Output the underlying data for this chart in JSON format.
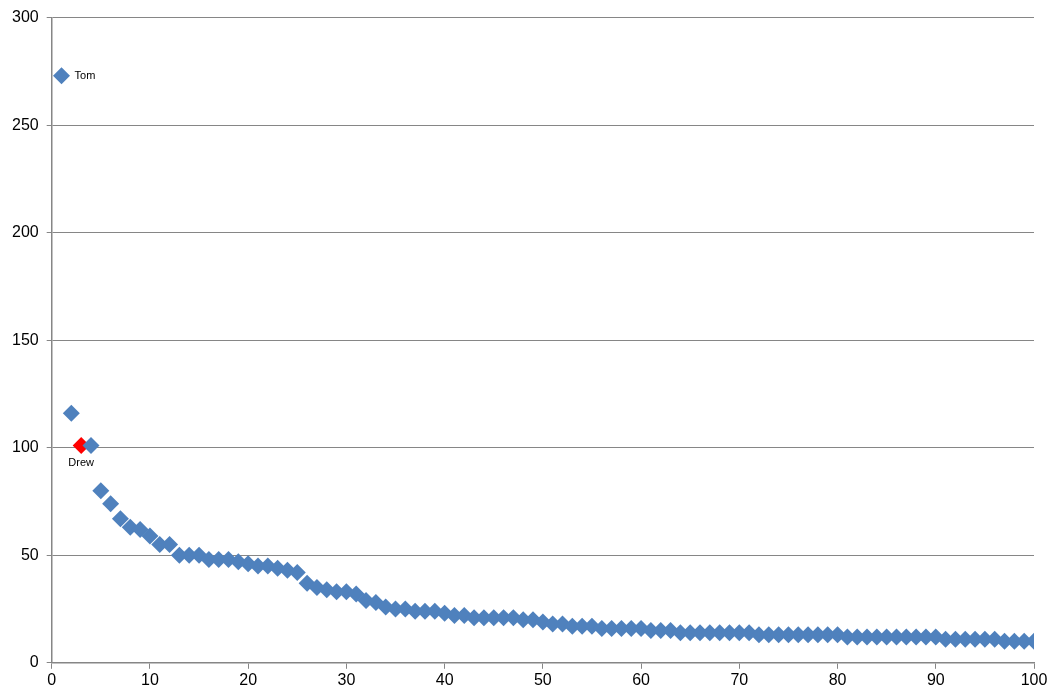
{
  "chart_data": {
    "type": "scatter",
    "marker": "diamond",
    "grid": "y",
    "xlim": [
      0,
      100
    ],
    "xticks": [
      0,
      10,
      20,
      30,
      40,
      50,
      60,
      70,
      80,
      90,
      100
    ],
    "ylim": [
      0,
      300
    ],
    "yticks": [
      0,
      50,
      100,
      150,
      200,
      250,
      300
    ],
    "x": [
      1,
      2,
      3,
      4,
      5,
      6,
      7,
      8,
      9,
      10,
      11,
      12,
      13,
      14,
      15,
      16,
      17,
      18,
      19,
      20,
      21,
      22,
      23,
      24,
      25,
      26,
      27,
      28,
      29,
      30,
      31,
      32,
      33,
      34,
      35,
      36,
      37,
      38,
      39,
      40,
      41,
      42,
      43,
      44,
      45,
      46,
      47,
      48,
      49,
      50,
      51,
      52,
      53,
      54,
      55,
      56,
      57,
      58,
      59,
      60,
      61,
      62,
      63,
      64,
      65,
      66,
      67,
      68,
      69,
      70,
      71,
      72,
      73,
      74,
      75,
      76,
      77,
      78,
      79,
      80,
      81,
      82,
      83,
      84,
      85,
      86,
      87,
      88,
      89,
      90,
      91,
      92,
      93,
      94,
      95,
      96,
      97,
      98,
      99,
      100
    ],
    "series": [
      {
        "colors": [
          "#4f81bd",
          "#4f81bd",
          "#ff0000",
          "#4f81bd",
          "#4f81bd",
          "#4f81bd",
          "#4f81bd",
          "#4f81bd",
          "#4f81bd",
          "#4f81bd",
          "#4f81bd",
          "#4f81bd",
          "#4f81bd",
          "#4f81bd",
          "#4f81bd",
          "#4f81bd",
          "#4f81bd",
          "#4f81bd",
          "#4f81bd",
          "#4f81bd",
          "#4f81bd",
          "#4f81bd",
          "#4f81bd",
          "#4f81bd",
          "#4f81bd",
          "#4f81bd",
          "#4f81bd",
          "#4f81bd",
          "#4f81bd",
          "#4f81bd",
          "#4f81bd",
          "#4f81bd",
          "#4f81bd",
          "#4f81bd",
          "#4f81bd",
          "#4f81bd",
          "#4f81bd",
          "#4f81bd",
          "#4f81bd",
          "#4f81bd",
          "#4f81bd",
          "#4f81bd",
          "#4f81bd",
          "#4f81bd",
          "#4f81bd",
          "#4f81bd",
          "#4f81bd",
          "#4f81bd",
          "#4f81bd",
          "#4f81bd",
          "#4f81bd",
          "#4f81bd",
          "#4f81bd",
          "#4f81bd",
          "#4f81bd",
          "#4f81bd",
          "#4f81bd",
          "#4f81bd",
          "#4f81bd",
          "#4f81bd",
          "#4f81bd",
          "#4f81bd",
          "#4f81bd",
          "#4f81bd",
          "#4f81bd",
          "#4f81bd",
          "#4f81bd",
          "#4f81bd",
          "#4f81bd",
          "#4f81bd",
          "#4f81bd",
          "#4f81bd",
          "#4f81bd",
          "#4f81bd",
          "#4f81bd",
          "#4f81bd",
          "#4f81bd",
          "#4f81bd",
          "#4f81bd",
          "#4f81bd",
          "#4f81bd",
          "#4f81bd",
          "#4f81bd",
          "#4f81bd",
          "#4f81bd",
          "#4f81bd",
          "#4f81bd",
          "#4f81bd",
          "#4f81bd",
          "#4f81bd",
          "#4f81bd",
          "#4f81bd",
          "#4f81bd",
          "#4f81bd",
          "#4f81bd",
          "#4f81bd",
          "#4f81bd",
          "#4f81bd",
          "#4f81bd",
          "#4f81bd"
        ],
        "values": [
          273,
          116,
          101,
          101,
          80,
          74,
          67,
          63,
          62,
          59,
          55,
          55,
          50,
          50,
          50,
          48,
          48,
          48,
          47,
          46,
          45,
          45,
          44,
          43,
          42,
          37,
          35,
          34,
          33,
          33,
          32,
          29,
          28,
          26,
          25,
          25,
          24,
          24,
          24,
          23,
          22,
          22,
          21,
          21,
          21,
          21,
          21,
          20,
          20,
          19,
          18,
          18,
          17,
          17,
          17,
          16,
          16,
          16,
          16,
          16,
          15,
          15,
          15,
          14,
          14,
          14,
          14,
          14,
          14,
          14,
          14,
          13,
          13,
          13,
          13,
          13,
          13,
          13,
          13,
          13,
          12,
          12,
          12,
          12,
          12,
          12,
          12,
          12,
          12,
          12,
          11,
          11,
          11,
          11,
          11,
          11,
          10,
          10,
          10,
          10
        ]
      }
    ],
    "annotations": [
      {
        "text": "Tom",
        "x": 1,
        "y": 273
      },
      {
        "text": "Drew",
        "x": 3,
        "y": 101
      }
    ]
  }
}
